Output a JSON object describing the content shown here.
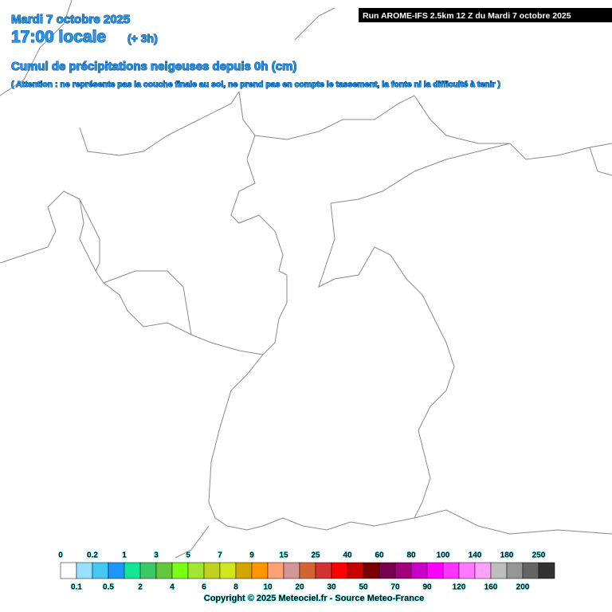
{
  "header": {
    "date": "Mardi 7 octobre 2025",
    "time": "17:00 locale",
    "offset": "(+ 3h)",
    "title": "Cumul de précipitations neigeuses depuis 0h (cm)",
    "note": "( Attention : ne représente pas la couche finale au sol, ne prend pas en compte le tassement, la fonte ni la difficulté à tenir )"
  },
  "run": "Run AROME-IFS 2.5km 12 Z du Mardi 7 octobre 2025",
  "legend": {
    "levels": [
      0,
      0.1,
      0.2,
      0.5,
      1,
      2,
      3,
      4,
      5,
      6,
      7,
      8,
      9,
      10,
      15,
      20,
      25,
      30,
      40,
      50,
      60,
      70,
      80,
      90,
      100,
      120,
      140,
      160,
      180,
      200,
      250
    ],
    "colors": [
      "#ffffff",
      "#96e1ff",
      "#46c8f5",
      "#1e96ff",
      "#14e696",
      "#3cc864",
      "#64c83c",
      "#78ff14",
      "#a0e632",
      "#bed21e",
      "#d2e61e",
      "#d2a500",
      "#ff9600",
      "#ffa078",
      "#d29696",
      "#d26432",
      "#d23232",
      "#ff0000",
      "#c80000",
      "#780000",
      "#780050",
      "#a00078",
      "#c800c8",
      "#ff00ff",
      "#ff32ff",
      "#ff78ff",
      "#ffa0ff",
      "#bebebe",
      "#969696",
      "#646464",
      "#323232"
    ]
  },
  "copyright": "Copyright © 2025 Meteociel.fr - Source Meteo-France"
}
